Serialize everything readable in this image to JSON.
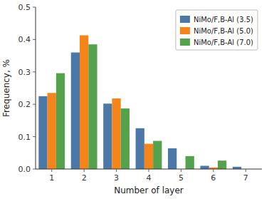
{
  "chart_data": {
    "type": "bar",
    "x_label": "Number of layer",
    "y_label": "Frequency, %",
    "categories": [
      "1",
      "2",
      "3",
      "4",
      "5",
      "6",
      "7"
    ],
    "series": [
      {
        "name": "NiMo/F,B-Al (3.5)",
        "values": [
          0.225,
          0.36,
          0.202,
          0.126,
          0.064,
          0.01,
          0.007
        ]
      },
      {
        "name": "NiMo/F,B-Al (5.0)",
        "values": [
          0.235,
          0.413,
          0.218,
          0.078,
          0.0,
          0.005,
          0.0
        ]
      },
      {
        "name": "NiMo/F,B-Al (7.0)",
        "values": [
          0.296,
          0.385,
          0.187,
          0.087,
          0.04,
          0.026,
          0.0
        ]
      }
    ],
    "ylim": [
      0,
      0.5
    ],
    "yticks": [
      {
        "value": 0,
        "label": "0.0"
      },
      0.1,
      0.2,
      0.3,
      0.4,
      0.5
    ],
    "legend": "upper-right"
  }
}
